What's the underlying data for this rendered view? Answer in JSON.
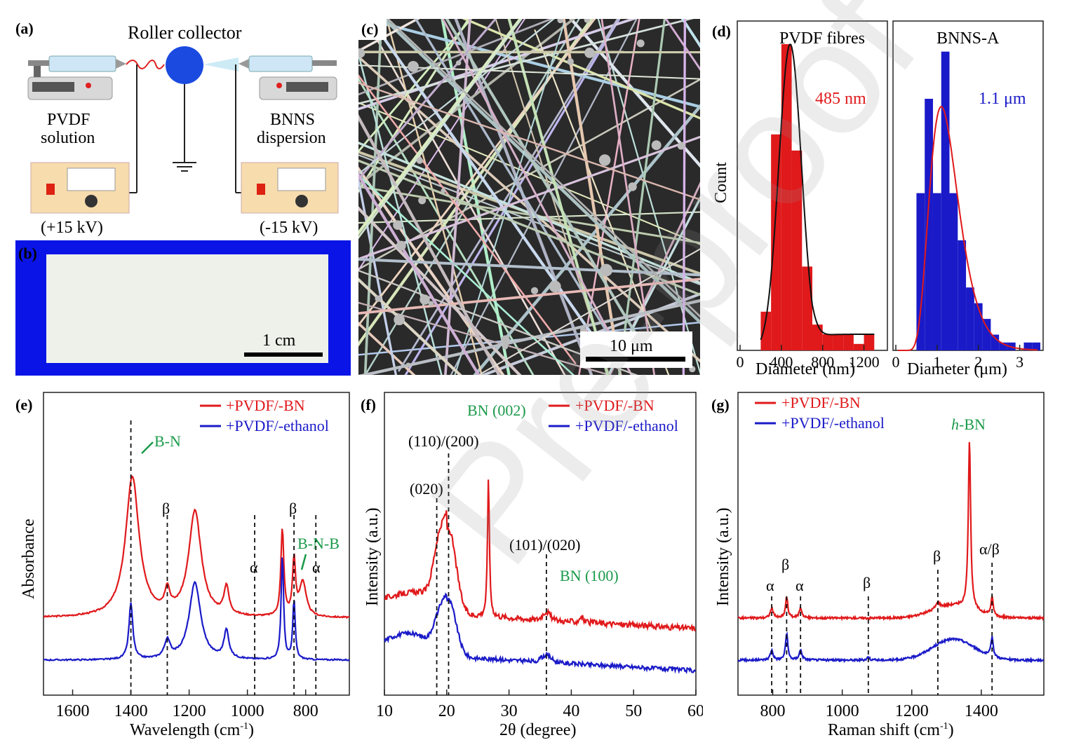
{
  "panels": {
    "a": {
      "label": "(a)",
      "roller": "Roller collector",
      "left_solution": [
        "PVDF",
        "solution"
      ],
      "right_solution": [
        "BNNS",
        "dispersion"
      ],
      "left_voltage": "(+15 kV)",
      "right_voltage": "(-15 kV)"
    },
    "b": {
      "label": "(b)",
      "scale_bar": "1 cm"
    },
    "c": {
      "label": "(c)",
      "scale_bar": "10 μm"
    },
    "d": {
      "label": "(d)",
      "ylabel": "Count",
      "left": {
        "title": "PVDF fibres",
        "mean": "485 nm",
        "xlabel": "Diameter (nm)",
        "xticks": [
          "0",
          "400",
          "800",
          "1200"
        ]
      },
      "right": {
        "title": "BNNS-A",
        "mean": "1.1 μm",
        "xlabel": "Diameter (μm)",
        "xticks": [
          "0",
          "1",
          "2",
          "3"
        ]
      }
    },
    "e": {
      "label": "(e)",
      "xlabel": "Wavelength (cm",
      "xlabel_sup": "-1",
      "xlabel_end": ")",
      "ylabel": "Absorbance",
      "legend": [
        "+PVDF/-BN",
        "+PVDF/-ethanol"
      ],
      "annotations": {
        "bn": "B-N",
        "bnb": "B-N-B",
        "beta": "β",
        "alpha": "α"
      },
      "xticks": [
        "1600",
        "1400",
        "1200",
        "1000",
        "800"
      ]
    },
    "f": {
      "label": "(f)",
      "xlabel": "2θ (degree)",
      "ylabel": "Intensity (a.u.)",
      "legend": [
        "+PVDF/-BN",
        "+PVDF/-ethanol"
      ],
      "annotations": {
        "bn002": "BN (002)",
        "p110": "(110)/(200)",
        "p020": "(020)",
        "p101": "(101)/(020)",
        "bn100": "BN (100)"
      },
      "xticks": [
        "10",
        "20",
        "30",
        "40",
        "50",
        "60"
      ]
    },
    "g": {
      "label": "(g)",
      "xlabel": "Raman shift (cm",
      "xlabel_sup": "-1",
      "xlabel_end": ")",
      "ylabel": "Intensity (a.u.)",
      "legend": [
        "+PVDF/-BN",
        "+PVDF/-ethanol"
      ],
      "annotations": {
        "hbn_h": "h",
        "hbn_rest": "-BN",
        "alpha": "α",
        "beta": "β",
        "ab": "α/β"
      },
      "xticks": [
        "800",
        "1000",
        "1200",
        "1400"
      ]
    }
  },
  "colors": {
    "red": "#e0191b",
    "blue": "#1a1ac8",
    "green": "#1a9a4a",
    "frame_blue": "#0a14e6"
  },
  "chart_data": [
    {
      "type": "bar",
      "title": "PVDF fibres",
      "xlabel": "Diameter (nm)",
      "ylabel": "Count",
      "xlim": [
        0,
        1400
      ],
      "x": [
        250,
        350,
        450,
        550,
        650,
        750,
        850,
        950,
        1050,
        1150,
        1250
      ],
      "values": [
        12,
        67,
        95,
        62,
        26,
        8,
        5,
        5,
        5,
        2,
        5
      ],
      "series": [
        {
          "name": "485 nm",
          "type": "line"
        }
      ]
    },
    {
      "type": "bar",
      "title": "BNNS-A",
      "xlabel": "Diameter (μm)",
      "ylabel": "Count",
      "xlim": [
        0,
        3.5
      ],
      "x": [
        0.6,
        0.8,
        1.0,
        1.2,
        1.4,
        1.6,
        1.8,
        2.0,
        2.2,
        2.4,
        2.6,
        2.8,
        3.0,
        3.2,
        3.4
      ],
      "values": [
        10,
        16,
        10,
        19,
        10,
        7,
        4,
        3,
        2,
        1,
        0.5,
        0.5,
        0,
        0.5,
        0.5
      ],
      "series": [
        {
          "name": "1.1 μm",
          "type": "line"
        }
      ]
    },
    {
      "type": "line",
      "xlabel": "Wavelength (cm-1)",
      "ylabel": "Absorbance",
      "xlim": [
        1700,
        650
      ],
      "series": [
        {
          "name": "+PVDF/-BN"
        },
        {
          "name": "+PVDF/-ethanol"
        }
      ],
      "reference_lines": [
        1400,
        1275,
        975,
        840,
        765
      ]
    },
    {
      "type": "line",
      "xlabel": "2θ (degree)",
      "ylabel": "Intensity (a.u.)",
      "xlim": [
        10,
        60
      ],
      "series": [
        {
          "name": "+PVDF/-BN"
        },
        {
          "name": "+PVDF/-ethanol"
        }
      ],
      "reference_lines": [
        18.4,
        20.3,
        36.0
      ]
    },
    {
      "type": "line",
      "xlabel": "Raman shift (cm-1)",
      "ylabel": "Intensity (a.u.)",
      "xlim": [
        700,
        1580
      ],
      "series": [
        {
          "name": "+PVDF/-BN"
        },
        {
          "name": "+PVDF/-ethanol"
        }
      ],
      "reference_lines": [
        797,
        840,
        880,
        1075,
        1275,
        1431
      ]
    }
  ]
}
